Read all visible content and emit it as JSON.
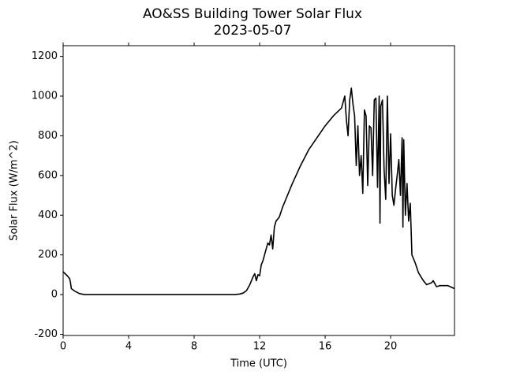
{
  "chart_data": {
    "type": "line",
    "title": "AO&SS Building Tower Solar Flux",
    "subtitle": "2023-05-07",
    "x_label": "Time (UTC)",
    "y_label": "Solar Flux (W/m^2)",
    "color": "#000000",
    "xlim": [
      0,
      23.9
    ],
    "xticks": [
      0,
      4,
      8,
      12,
      16,
      20
    ],
    "ylim": [
      -206,
      1254
    ],
    "yticks": [
      -200,
      0,
      200,
      400,
      600,
      800,
      1000,
      1200
    ],
    "x": [
      0,
      0.25,
      0.4,
      0.45,
      0.5,
      0.7,
      1.0,
      1.3,
      2,
      4,
      6,
      8,
      10,
      10.5,
      10.8,
      11,
      11.2,
      11.4,
      11.6,
      11.7,
      11.8,
      11.9,
      12.0,
      12.1,
      12.2,
      12.3,
      12.4,
      12.5,
      12.6,
      12.7,
      12.8,
      12.9,
      13.0,
      13.2,
      13.4,
      13.6,
      14,
      14.5,
      15,
      15.5,
      16,
      16.5,
      17,
      17.2,
      17.3,
      17.4,
      17.5,
      17.6,
      17.7,
      17.8,
      17.9,
      18,
      18.1,
      18.2,
      18.3,
      18.4,
      18.5,
      18.6,
      18.7,
      18.8,
      18.9,
      19.0,
      19.1,
      19.2,
      19.3,
      19.35,
      19.4,
      19.5,
      19.6,
      19.7,
      19.8,
      19.9,
      20.0,
      20.1,
      20.2,
      20.3,
      20.4,
      20.5,
      20.6,
      20.7,
      20.75,
      20.8,
      20.9,
      21.0,
      21.1,
      21.2,
      21.3,
      21.5,
      21.7,
      22,
      22.2,
      22.5,
      22.6,
      22.8,
      23,
      23.5,
      23.9
    ],
    "values": [
      115,
      95,
      80,
      60,
      30,
      18,
      5,
      0,
      0,
      0,
      0,
      0,
      0,
      0,
      3,
      8,
      20,
      50,
      90,
      105,
      70,
      100,
      95,
      150,
      170,
      200,
      230,
      260,
      250,
      300,
      230,
      340,
      370,
      390,
      440,
      480,
      560,
      650,
      730,
      790,
      850,
      900,
      940,
      1000,
      880,
      800,
      980,
      1040,
      960,
      900,
      650,
      850,
      600,
      700,
      510,
      930,
      900,
      550,
      850,
      840,
      600,
      980,
      990,
      540,
      1000,
      360,
      950,
      980,
      630,
      480,
      1000,
      560,
      810,
      500,
      450,
      530,
      600,
      680,
      500,
      790,
      340,
      780,
      400,
      560,
      370,
      460,
      200,
      160,
      110,
      70,
      50,
      60,
      70,
      40,
      45,
      45,
      30
    ]
  }
}
